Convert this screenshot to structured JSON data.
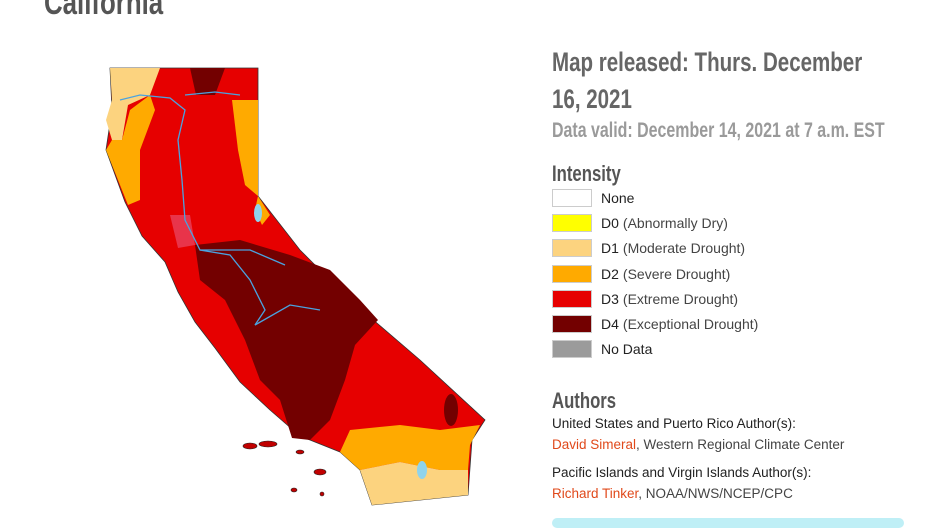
{
  "header": {
    "title": "California"
  },
  "info": {
    "released": "Map released: Thurs. December 16, 2021",
    "valid": "Data valid: December 14, 2021 at 7 a.m. EST"
  },
  "legend": {
    "title": "Intensity",
    "items": [
      {
        "code": "None",
        "label": "",
        "color": "#ffffff"
      },
      {
        "code": "D0",
        "label": "(Abnormally Dry)",
        "color": "#ffff00"
      },
      {
        "code": "D1",
        "label": "(Moderate Drought)",
        "color": "#fcd37f"
      },
      {
        "code": "D2",
        "label": "(Severe Drought)",
        "color": "#ffaa00"
      },
      {
        "code": "D3",
        "label": "(Extreme Drought)",
        "color": "#e60000"
      },
      {
        "code": "D4",
        "label": "(Exceptional Drought)",
        "color": "#730000"
      },
      {
        "code": "No Data",
        "label": "",
        "color": "#9b9b9b"
      }
    ]
  },
  "authors": {
    "title": "Authors",
    "groups": [
      {
        "heading": "United States and Puerto Rico Author(s):",
        "name": "David Simeral",
        "affiliation": ", Western Regional Climate Center"
      },
      {
        "heading": "Pacific Islands and Virgin Islands Author(s):",
        "name": "Richard Tinker",
        "affiliation": ", NOAA/NWS/NCEP/CPC"
      }
    ]
  }
}
